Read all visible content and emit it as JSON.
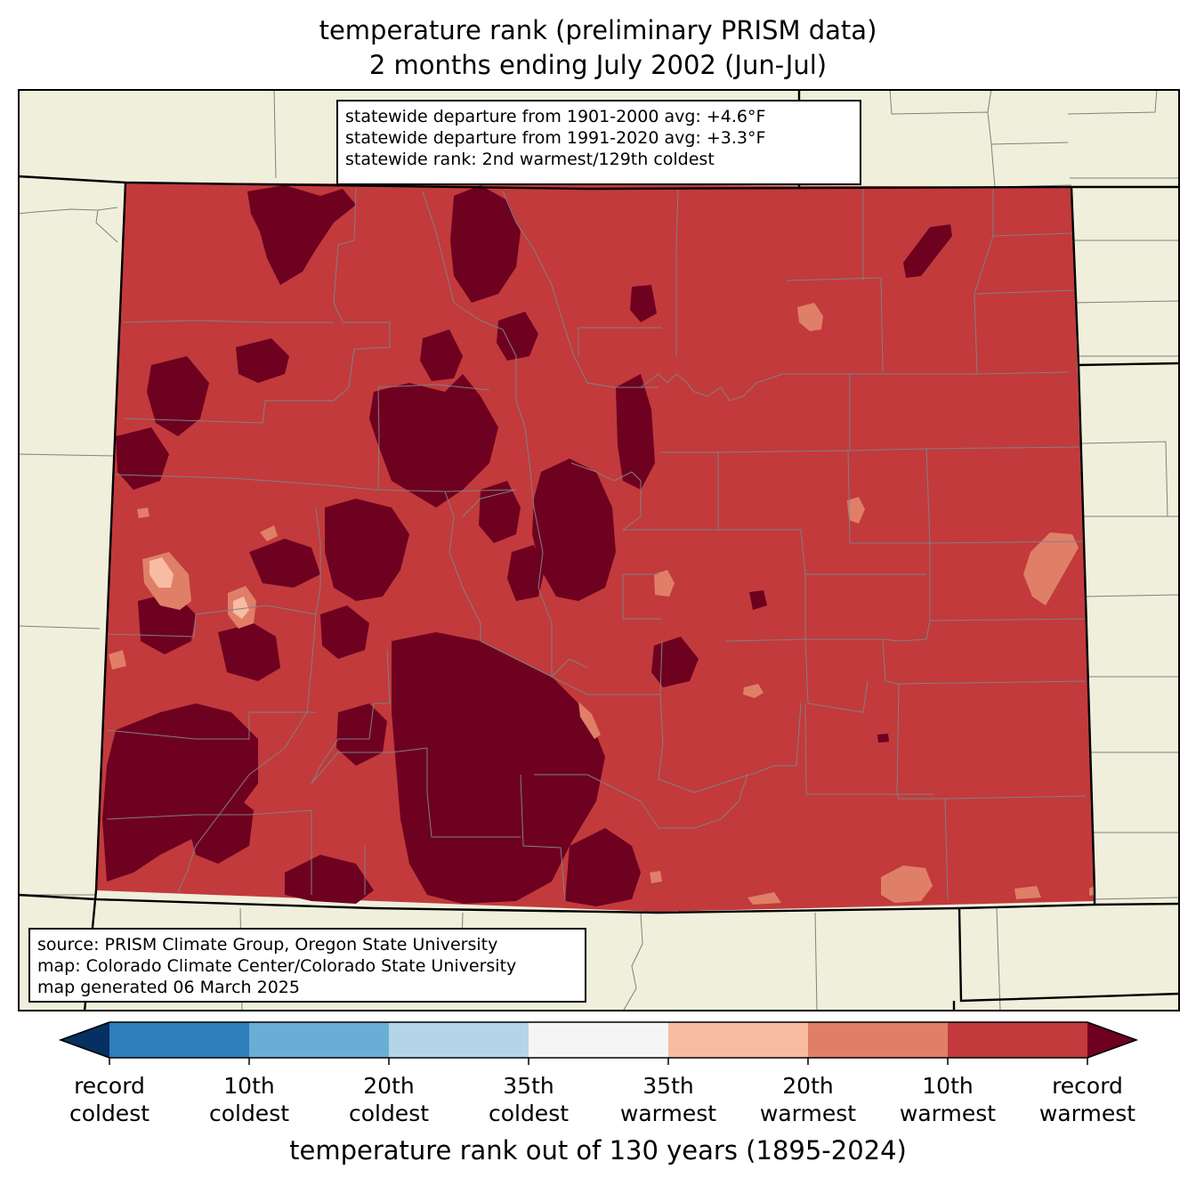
{
  "title": {
    "line1": "temperature rank (preliminary PRISM data)",
    "line2": "2 months ending July 2002 (Jun-Jul)"
  },
  "stats": {
    "line1": "statewide departure from 1901-2000 avg: +4.6°F",
    "line2": "statewide departure from 1991-2020 avg: +3.3°F",
    "line3": "statewide rank: 2nd warmest/129th coldest"
  },
  "source": {
    "line1": "source: PRISM Climate Group, Oregon State University",
    "line2": "map: Colorado Climate Center/Colorado State University",
    "line3": "map generated 06 March 2025"
  },
  "legend": {
    "axis_label": "temperature rank out of 130 years (1895-2024)",
    "ticks": [
      {
        "line1": "record",
        "line2": "coldest"
      },
      {
        "line1": "10th",
        "line2": "coldest"
      },
      {
        "line1": "20th",
        "line2": "coldest"
      },
      {
        "line1": "35th",
        "line2": "coldest"
      },
      {
        "line1": "35th",
        "line2": "warmest"
      },
      {
        "line1": "20th",
        "line2": "warmest"
      },
      {
        "line1": "10th",
        "line2": "warmest"
      },
      {
        "line1": "record",
        "line2": "warmest"
      }
    ],
    "bins": [
      {
        "color": "#053061",
        "range": "record coldest"
      },
      {
        "color": "#2f7fbc",
        "range": "record–10th coldest"
      },
      {
        "color": "#6aaed5",
        "range": "10th–20th coldest"
      },
      {
        "color": "#b3d5e7",
        "range": "20th–35th coldest"
      },
      {
        "color": "#f5f5f5",
        "range": "35th coldest–35th warmest"
      },
      {
        "color": "#f8bca3",
        "range": "35th–20th warmest"
      },
      {
        "color": "#e07f68",
        "range": "20th–10th warmest"
      },
      {
        "color": "#c23a3c",
        "range": "10th–record warmest"
      },
      {
        "color": "#6e0020",
        "range": "record warmest"
      }
    ]
  },
  "colors": {
    "land": "#efefdc",
    "state_border": "#000000",
    "county_border": "#808080",
    "base_fill": "#c23a3c",
    "record_fill": "#6e0020",
    "light_fill": "#e07f68",
    "pale_fill": "#f8bca3"
  }
}
